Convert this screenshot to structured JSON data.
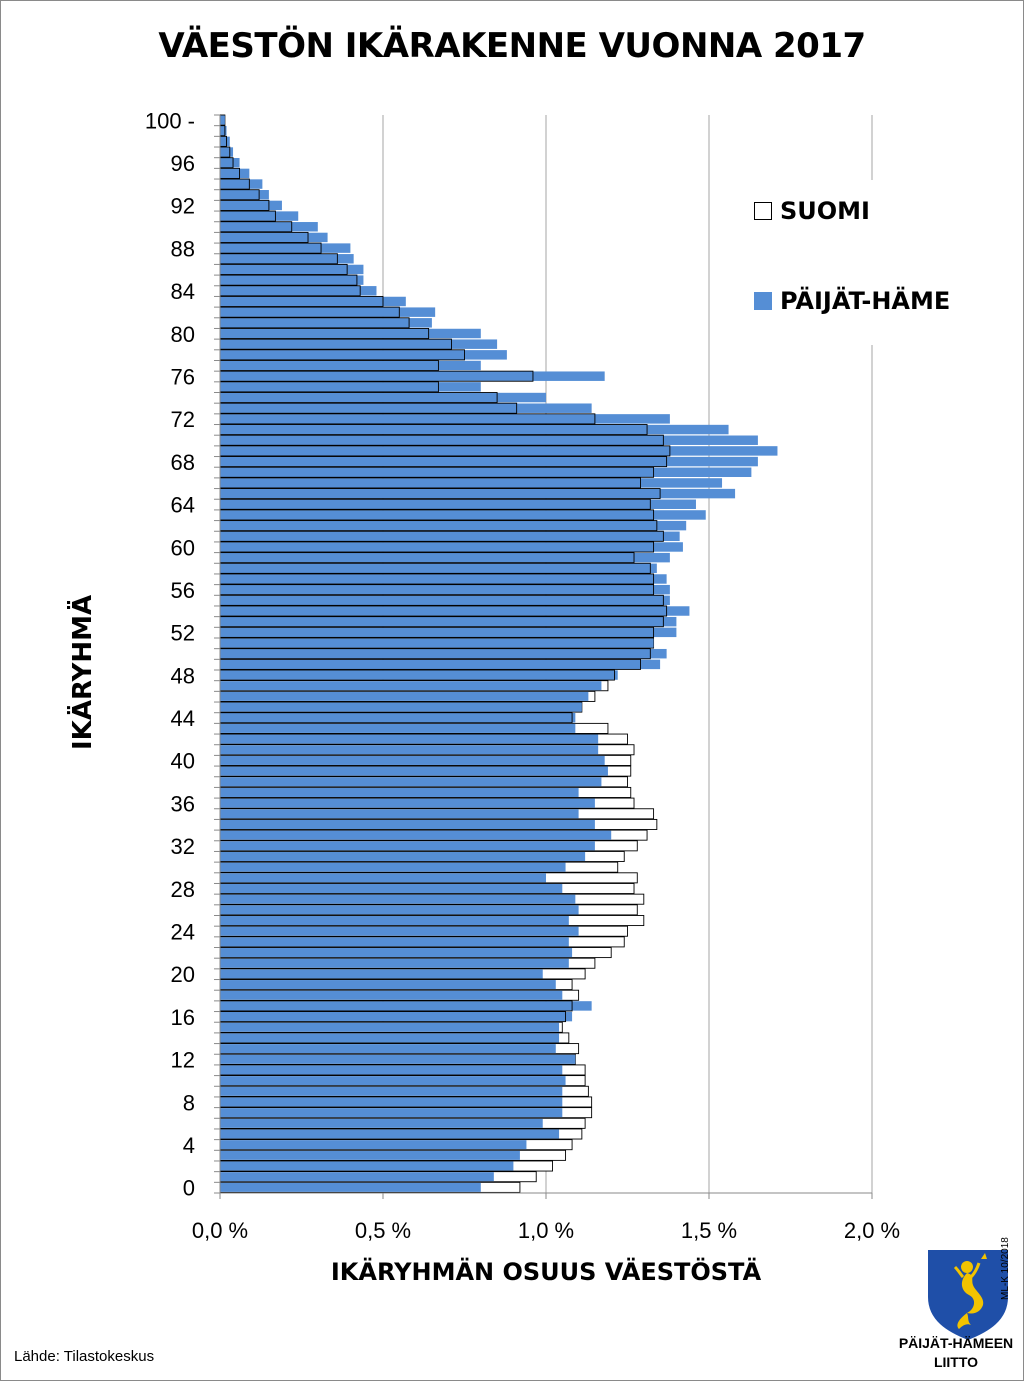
{
  "title": "VÄESTÖN IKÄRAKENNE VUONNA 2017",
  "source": "Lähde: Tilastokeskus",
  "logo": {
    "line1": "PÄIJÄT-HÄMEEN",
    "line2": "LIITTO",
    "code": "ML-K 10/2018"
  },
  "colors": {
    "phame": "#558ed5",
    "suomi": "#ffffff",
    "outline": "#000000",
    "grid": "#a6a6a6"
  },
  "chart_data": {
    "type": "bar",
    "orientation": "horizontal",
    "title": "VÄESTÖN IKÄRAKENNE VUONNA 2017",
    "xlabel": "IKÄRYHMÄN OSUUS VÄESTÖSTÄ",
    "ylabel": "IKÄRYHMÄ",
    "xlim": [
      0,
      2.0
    ],
    "x_ticks": [
      0,
      0.5,
      1.0,
      1.5,
      2.0
    ],
    "x_tick_labels": [
      "0,0 %",
      "0,5 %",
      "1,0 %",
      "1,5 %",
      "2,0 %"
    ],
    "y_tick_labels": [
      "0",
      "4",
      "8",
      "12",
      "16",
      "20",
      "24",
      "28",
      "32",
      "36",
      "40",
      "44",
      "48",
      "52",
      "56",
      "60",
      "64",
      "68",
      "72",
      "76",
      "80",
      "84",
      "88",
      "92",
      "96",
      "100 -"
    ],
    "categories": [
      0,
      1,
      2,
      3,
      4,
      5,
      6,
      7,
      8,
      9,
      10,
      11,
      12,
      13,
      14,
      15,
      16,
      17,
      18,
      19,
      20,
      21,
      22,
      23,
      24,
      25,
      26,
      27,
      28,
      29,
      30,
      31,
      32,
      33,
      34,
      35,
      36,
      37,
      38,
      39,
      40,
      41,
      42,
      43,
      44,
      45,
      46,
      47,
      48,
      49,
      50,
      51,
      52,
      53,
      54,
      55,
      56,
      57,
      58,
      59,
      60,
      61,
      62,
      63,
      64,
      65,
      66,
      67,
      68,
      69,
      70,
      71,
      72,
      73,
      74,
      75,
      76,
      77,
      78,
      79,
      80,
      81,
      82,
      83,
      84,
      85,
      86,
      87,
      88,
      89,
      90,
      91,
      92,
      93,
      94,
      95,
      96,
      97,
      98,
      99,
      100
    ],
    "grid": true,
    "legend_position": "right",
    "series": [
      {
        "name": "PÄIJÄT-HÄME",
        "color": "#558ed5",
        "values": [
          0.8,
          0.84,
          0.9,
          0.92,
          0.94,
          1.04,
          0.99,
          1.05,
          1.05,
          1.05,
          1.06,
          1.05,
          1.09,
          1.03,
          1.04,
          1.04,
          1.08,
          1.14,
          1.05,
          1.03,
          0.99,
          1.07,
          1.08,
          1.07,
          1.1,
          1.07,
          1.1,
          1.09,
          1.05,
          1.0,
          1.06,
          1.12,
          1.15,
          1.2,
          1.15,
          1.1,
          1.15,
          1.1,
          1.17,
          1.19,
          1.18,
          1.16,
          1.16,
          1.09,
          1.09,
          1.11,
          1.13,
          1.17,
          1.22,
          1.35,
          1.37,
          1.33,
          1.4,
          1.4,
          1.44,
          1.38,
          1.38,
          1.37,
          1.34,
          1.38,
          1.42,
          1.41,
          1.43,
          1.49,
          1.46,
          1.58,
          1.54,
          1.63,
          1.65,
          1.71,
          1.65,
          1.56,
          1.38,
          1.14,
          1.0,
          0.8,
          1.18,
          0.8,
          0.88,
          0.85,
          0.8,
          0.65,
          0.66,
          0.57,
          0.48,
          0.44,
          0.44,
          0.41,
          0.4,
          0.33,
          0.3,
          0.24,
          0.19,
          0.15,
          0.13,
          0.09,
          0.06,
          0.04,
          0.03,
          0.02,
          0.015
        ]
      },
      {
        "name": "SUOMI",
        "color": "#ffffff",
        "values": [
          0.92,
          0.97,
          1.02,
          1.06,
          1.08,
          1.11,
          1.12,
          1.14,
          1.14,
          1.13,
          1.12,
          1.12,
          1.09,
          1.1,
          1.07,
          1.05,
          1.06,
          1.08,
          1.1,
          1.08,
          1.12,
          1.15,
          1.2,
          1.24,
          1.25,
          1.3,
          1.28,
          1.3,
          1.27,
          1.28,
          1.22,
          1.24,
          1.28,
          1.31,
          1.34,
          1.33,
          1.27,
          1.26,
          1.25,
          1.26,
          1.26,
          1.27,
          1.25,
          1.19,
          1.08,
          1.11,
          1.15,
          1.19,
          1.21,
          1.29,
          1.32,
          1.33,
          1.33,
          1.36,
          1.37,
          1.36,
          1.33,
          1.33,
          1.32,
          1.27,
          1.33,
          1.36,
          1.34,
          1.33,
          1.32,
          1.35,
          1.29,
          1.33,
          1.37,
          1.38,
          1.36,
          1.31,
          1.15,
          0.91,
          0.85,
          0.67,
          0.96,
          0.67,
          0.75,
          0.71,
          0.64,
          0.58,
          0.55,
          0.5,
          0.43,
          0.42,
          0.39,
          0.36,
          0.31,
          0.27,
          0.22,
          0.17,
          0.15,
          0.12,
          0.09,
          0.06,
          0.04,
          0.03,
          0.02,
          0.015,
          0.015
        ]
      }
    ]
  }
}
